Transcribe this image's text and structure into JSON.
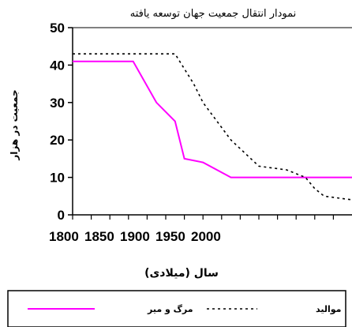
{
  "chart_data": {
    "type": "line",
    "title": "نمودار انتقال جمعیت جهان توسعه یافته",
    "xlabel": "سال (میلادی)",
    "ylabel": "جمعیت در هزار",
    "x_tick_labels": [
      "1800",
      "1850",
      "1900",
      "1950",
      "2000"
    ],
    "y_ticks": [
      0,
      10,
      20,
      30,
      40,
      50
    ],
    "ylim": [
      0,
      50
    ],
    "grid": false,
    "legend_position": "bottom",
    "series": [
      {
        "name": "مرگ و میر",
        "color": "#ff00ff",
        "style": "solid",
        "x": [
          1760,
          1800,
          1825,
          1850,
          1870,
          1880,
          1900,
          1930,
          1960,
          2060
        ],
        "y": [
          41,
          41,
          41,
          30,
          25,
          15,
          14,
          10,
          10,
          10
        ]
      },
      {
        "name": "موالید",
        "color": "#000000",
        "style": "dashed",
        "x": [
          1760,
          1800,
          1825,
          1850,
          1870,
          1890,
          1900,
          1930,
          1960,
          1990,
          2010,
          2020,
          2030,
          2060
        ],
        "y": [
          43,
          43,
          43,
          43,
          43,
          35,
          30,
          20,
          13,
          12,
          10,
          7,
          5,
          4
        ]
      }
    ]
  }
}
